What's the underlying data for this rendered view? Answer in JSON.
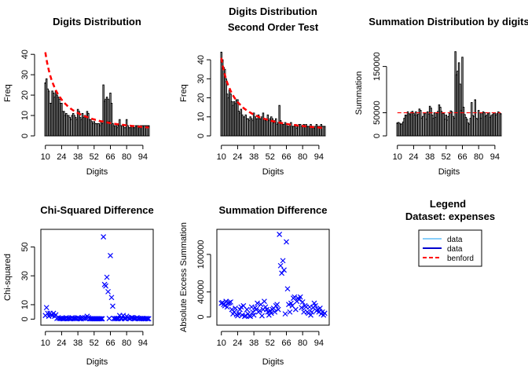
{
  "colors": {
    "bars": "#000000",
    "benford": "#ff0000",
    "points": "#0000ff",
    "data_light": "#87cefa",
    "data_dark": "#0000cd"
  },
  "chart_data": [
    {
      "type": "bar",
      "key": "digits",
      "title": "Digits Distribution",
      "xlabel": "Digits",
      "ylabel": "Freq",
      "x_ticks": [
        "10",
        "24",
        "38",
        "52",
        "66",
        "80",
        "94"
      ],
      "y_ticks": [
        "0",
        "10",
        "20",
        "30",
        "40"
      ],
      "ylim": [
        0,
        42
      ],
      "x_start": 10,
      "values": [
        26,
        28,
        23,
        22,
        16,
        16,
        22,
        21,
        19,
        22,
        20,
        19,
        18,
        16,
        16,
        12,
        12,
        10,
        11,
        10,
        10,
        9,
        8,
        10,
        11,
        10,
        9,
        8,
        13,
        12,
        9,
        8,
        11,
        9,
        10,
        9,
        12,
        11,
        8,
        8,
        7,
        6,
        7,
        6,
        6,
        6,
        6,
        5,
        7,
        6,
        25,
        17,
        18,
        19,
        18,
        7,
        21,
        16,
        6,
        5,
        5,
        5,
        4,
        5,
        8,
        5,
        5,
        5,
        4,
        4,
        8,
        5,
        4,
        4,
        5,
        5,
        4,
        4,
        5,
        5,
        5,
        4,
        5,
        5,
        5,
        5,
        5,
        5,
        5,
        5
      ],
      "benford": [
        41.0,
        37.5,
        34.5,
        32.1,
        30.0,
        28.1,
        26.4,
        25.0,
        23.6,
        22.4,
        21.3,
        20.3,
        19.4,
        18.6,
        17.8,
        17.1,
        16.5,
        15.8,
        15.3,
        14.7,
        14.2,
        13.8,
        13.3,
        12.9,
        12.5,
        12.2,
        11.8,
        11.5,
        11.2,
        10.9,
        10.6,
        10.3,
        10.1,
        9.8,
        9.6,
        9.4,
        9.2,
        9.0,
        8.8,
        8.6,
        8.4,
        8.2,
        8.1,
        7.9,
        7.8,
        7.6,
        7.5,
        7.3,
        7.2,
        7.1,
        7.0,
        6.8,
        6.7,
        6.6,
        6.5,
        6.4,
        6.3,
        6.2,
        6.1,
        6.0,
        5.9,
        5.8,
        5.7,
        5.7,
        5.6,
        5.5,
        5.4,
        5.4,
        5.3,
        5.2,
        5.2,
        5.1,
        5.0,
        5.0,
        4.9,
        4.8,
        4.8,
        4.7,
        4.7,
        4.6,
        4.6,
        4.5,
        4.5,
        4.4,
        4.4,
        4.3,
        4.3,
        4.2,
        4.2,
        4.1
      ]
    },
    {
      "type": "bar",
      "key": "second",
      "title": "Digits Distribution",
      "subtitle": "Second Order Test",
      "xlabel": "Digits",
      "ylabel": "Freq",
      "x_ticks": [
        "10",
        "24",
        "38",
        "52",
        "66",
        "80",
        "94"
      ],
      "y_ticks": [
        "0",
        "10",
        "20",
        "30",
        "40"
      ],
      "ylim": [
        0,
        45
      ],
      "x_start": 10,
      "values": [
        44,
        40,
        36,
        35,
        30,
        22,
        20,
        24,
        22,
        18,
        16,
        18,
        17,
        19,
        19,
        13,
        12,
        14,
        11,
        10,
        10,
        11,
        9,
        9,
        8,
        10,
        9,
        8,
        12,
        10,
        9,
        9,
        11,
        9,
        9,
        10,
        12,
        9,
        8,
        9,
        11,
        8,
        9,
        10,
        9,
        7,
        8,
        9,
        6,
        7,
        16,
        8,
        7,
        6,
        6,
        7,
        6,
        5,
        5,
        6,
        7,
        5,
        5,
        5,
        6,
        4,
        5,
        6,
        6,
        5,
        5,
        6,
        5,
        6,
        5,
        5,
        5,
        6,
        5,
        5,
        4,
        5,
        6,
        5,
        5,
        5,
        6,
        5,
        5,
        5
      ],
      "benford": [
        41.0,
        37.5,
        34.5,
        32.1,
        30.0,
        28.1,
        26.4,
        25.0,
        23.6,
        22.4,
        21.3,
        20.3,
        19.4,
        18.6,
        17.8,
        17.1,
        16.5,
        15.8,
        15.3,
        14.7,
        14.2,
        13.8,
        13.3,
        12.9,
        12.5,
        12.2,
        11.8,
        11.5,
        11.2,
        10.9,
        10.6,
        10.3,
        10.1,
        9.8,
        9.6,
        9.4,
        9.2,
        9.0,
        8.8,
        8.6,
        8.4,
        8.2,
        8.1,
        7.9,
        7.8,
        7.6,
        7.5,
        7.3,
        7.2,
        7.1,
        7.0,
        6.8,
        6.7,
        6.6,
        6.5,
        6.4,
        6.3,
        6.2,
        6.1,
        6.0,
        5.9,
        5.8,
        5.7,
        5.7,
        5.6,
        5.5,
        5.4,
        5.4,
        5.3,
        5.2,
        5.2,
        5.1,
        5.0,
        5.0,
        4.9,
        4.8,
        4.8,
        4.7,
        4.7,
        4.6,
        4.6,
        4.5,
        4.5,
        4.4,
        4.4,
        4.3,
        4.3,
        4.2,
        4.2,
        4.1
      ]
    },
    {
      "type": "bar",
      "key": "summation",
      "title": "Summation Distribution by digits",
      "xlabel": "Digits",
      "ylabel": "Summation",
      "x_ticks": [
        "10",
        "24",
        "38",
        "52",
        "66",
        "80",
        "94"
      ],
      "y_ticks": [
        {
          "label": "0",
          "v": 0
        },
        {
          "label": "50000",
          "v": 50000
        },
        {
          "label": "150000",
          "v": 150000
        }
      ],
      "ylim": [
        0,
        185000
      ],
      "x_start": 10,
      "values": [
        28000,
        29000,
        27000,
        25000,
        26000,
        30000,
        38000,
        45000,
        44000,
        52000,
        48000,
        46000,
        51000,
        53000,
        49000,
        45000,
        52000,
        44000,
        47000,
        58000,
        55000,
        38000,
        42000,
        50000,
        48000,
        36000,
        52000,
        47000,
        64000,
        60000,
        45000,
        38000,
        50000,
        40000,
        49000,
        53000,
        67000,
        62000,
        53000,
        49000,
        48000,
        36000,
        45000,
        34000,
        42000,
        50000,
        54000,
        52000,
        42000,
        38000,
        182000,
        132000,
        140000,
        158000,
        112000,
        55000,
        170000,
        62000,
        46000,
        40000,
        36000,
        28000,
        25000,
        38000,
        72000,
        44000,
        42000,
        78000,
        38000,
        36000,
        55000,
        50000,
        38000,
        48000,
        52000,
        50000,
        42000,
        45000,
        48000,
        50000,
        40000,
        44000,
        46000,
        48000,
        50000,
        45000,
        48000,
        52000,
        50000,
        48000
      ],
      "benford_line": 50000
    },
    {
      "type": "scatter",
      "key": "chi",
      "title": "Chi-Squared Difference",
      "xlabel": "Digits",
      "ylabel": "Chi-squared",
      "x_ticks": [
        "10",
        "24",
        "38",
        "52",
        "66",
        "80",
        "94"
      ],
      "y_ticks": [
        "0",
        "10",
        "30",
        "50"
      ],
      "ylim": [
        -2,
        60
      ],
      "x_start": 10,
      "values": [
        2.5,
        8,
        4,
        2,
        4,
        3,
        2.5,
        4,
        2,
        3,
        0.5,
        1,
        0.5,
        0.5,
        0.5,
        0.3,
        0.3,
        0.5,
        1,
        0.5,
        0.5,
        0.3,
        0.3,
        1,
        0.5,
        0.5,
        0.5,
        0.3,
        1,
        0.5,
        0.3,
        0.3,
        1,
        0.5,
        1,
        0.5,
        2,
        1,
        0.3,
        0.3,
        0.3,
        0.3,
        0.3,
        0.3,
        0.3,
        0.3,
        0.3,
        0.3,
        0.3,
        0.3,
        57,
        24,
        23,
        29,
        19,
        0.5,
        44,
        15,
        9,
        0.5,
        0.3,
        0.5,
        0.3,
        0.5,
        2.5,
        0.3,
        0.5,
        2.5,
        0.5,
        0.3,
        2,
        1,
        0.5,
        0.3,
        1,
        1,
        0.5,
        0.3,
        0.5,
        1,
        0.5,
        0.3,
        0.5,
        0.3,
        0.5,
        0.3,
        0.3,
        0.5,
        0.3,
        0.3
      ]
    },
    {
      "type": "scatter",
      "key": "sumdiff",
      "title": "Summation Difference",
      "xlabel": "Digits",
      "ylabel": "Absolute Excess Summation",
      "x_ticks": [
        "10",
        "24",
        "38",
        "52",
        "66",
        "80",
        "94"
      ],
      "y_ticks": [
        {
          "label": "0",
          "v": 0
        },
        {
          "label": "40000",
          "v": 40000
        },
        {
          "label": "100000",
          "v": 100000
        }
      ],
      "ylim": [
        -8000,
        135000
      ],
      "x_start": 10,
      "values": [
        22000,
        23000,
        20000,
        18000,
        25000,
        16000,
        22000,
        23000,
        24000,
        12000,
        5000,
        8000,
        14000,
        4000,
        2000,
        5000,
        12000,
        16000,
        3000,
        18000,
        1000,
        2000,
        12000,
        5000,
        2000,
        1000,
        16000,
        8000,
        3000,
        15000,
        12000,
        22000,
        8000,
        10000,
        20000,
        2000,
        12000,
        25000,
        16000,
        12000,
        8000,
        3000,
        10000,
        6000,
        12000,
        14000,
        8000,
        18000,
        20000,
        12000,
        132000,
        82000,
        70000,
        90000,
        75000,
        5000,
        120000,
        45000,
        20000,
        8000,
        22000,
        18000,
        30000,
        32000,
        12000,
        25000,
        30000,
        28000,
        32000,
        15000,
        24000,
        8000,
        18000,
        16000,
        8000,
        6000,
        16000,
        3000,
        8000,
        15000,
        22000,
        18000,
        10000,
        12000,
        8000,
        14000,
        5000,
        8000,
        3000,
        6000
      ]
    }
  ],
  "legend": {
    "title": "Legend",
    "subtitle": "Dataset: expenses",
    "items": [
      {
        "label": "data",
        "color": "#87cefa",
        "dash": false
      },
      {
        "label": "data",
        "color": "#0000cd",
        "dash": false
      },
      {
        "label": "benford",
        "color": "#ff0000",
        "dash": true
      }
    ]
  }
}
